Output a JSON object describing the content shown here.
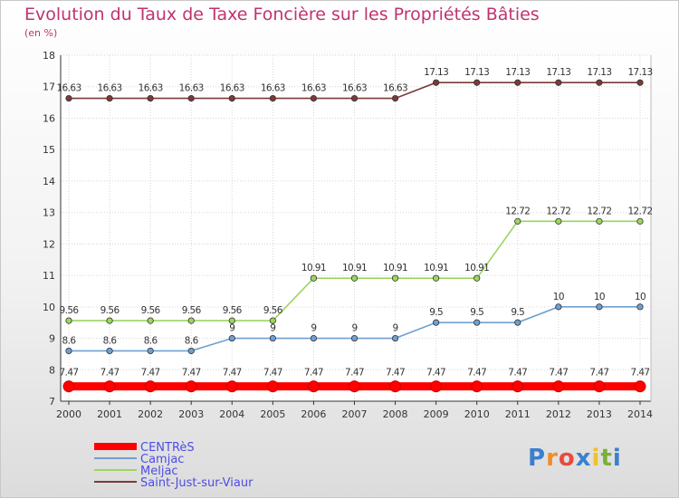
{
  "chart_data": {
    "type": "line",
    "title": "Evolution du Taux de Taxe Foncière sur les Propriétés Bâties",
    "ylabel": "(en %)",
    "xlabel": "",
    "categories": [
      "2000",
      "2001",
      "2002",
      "2003",
      "2004",
      "2005",
      "2006",
      "2007",
      "2008",
      "2009",
      "2010",
      "2011",
      "2012",
      "2013",
      "2014"
    ],
    "ylim": [
      7,
      18
    ],
    "yticks": [
      7,
      8,
      9,
      10,
      11,
      12,
      13,
      14,
      15,
      16,
      17,
      18
    ],
    "series": [
      {
        "name": "CENTRèS",
        "color": "#ff0000",
        "values": [
          7.47,
          7.47,
          7.47,
          7.47,
          7.47,
          7.47,
          7.47,
          7.47,
          7.47,
          7.47,
          7.47,
          7.47,
          7.47,
          7.47,
          7.47
        ],
        "labels": [
          "7.47",
          "7.47",
          "7.47",
          "7.47",
          "7.47",
          "7.47",
          "7.47",
          "7.47",
          "7.47",
          "7.47",
          "7.47",
          "7.47",
          "7.47",
          "7.47",
          "7.47"
        ]
      },
      {
        "name": "Camjac",
        "color": "#6fa0d0",
        "values": [
          8.6,
          8.6,
          8.6,
          8.6,
          9,
          9,
          9,
          9,
          9,
          9.5,
          9.5,
          9.5,
          10,
          10,
          10
        ],
        "labels": [
          "8.6",
          "8.6",
          "8.6",
          "8.6",
          "9",
          "9",
          "9",
          "9",
          "9",
          "9.5",
          "9.5",
          "9.5",
          "10",
          "10",
          "10"
        ]
      },
      {
        "name": "Meljac",
        "color": "#9ad660",
        "values": [
          9.56,
          9.56,
          9.56,
          9.56,
          9.56,
          9.56,
          10.91,
          10.91,
          10.91,
          10.91,
          10.91,
          12.72,
          12.72,
          12.72,
          12.72
        ],
        "labels": [
          "9.56",
          "9.56",
          "9.56",
          "9.56",
          "9.56",
          "9.56",
          "10.91",
          "10.91",
          "10.91",
          "10.91",
          "10.91",
          "12.72",
          "12.72",
          "12.72",
          "12.72"
        ]
      },
      {
        "name": "Saint-Just-sur-Viaur",
        "color": "#7a3a3a",
        "values": [
          16.63,
          16.63,
          16.63,
          16.63,
          16.63,
          16.63,
          16.63,
          16.63,
          16.63,
          17.13,
          17.13,
          17.13,
          17.13,
          17.13,
          17.13
        ],
        "labels": [
          "16.63",
          "16.63",
          "16.63",
          "16.63",
          "16.63",
          "16.63",
          "16.63",
          "16.63",
          "16.63",
          "17.13",
          "17.13",
          "17.13",
          "17.13",
          "17.13",
          "17.13"
        ]
      }
    ]
  },
  "branding": {
    "text": "Proxiti"
  }
}
